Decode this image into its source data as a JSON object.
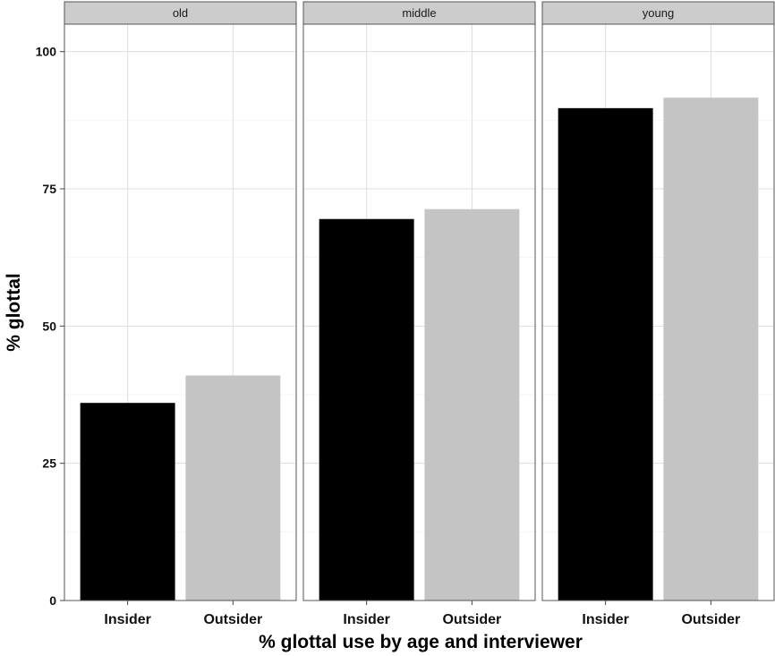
{
  "chart_data": {
    "type": "bar",
    "xlabel": "% glottal use by age and interviewer",
    "ylabel": "% glottal",
    "ylim": [
      0,
      105
    ],
    "yticks": [
      0,
      25,
      50,
      75,
      100
    ],
    "grid": true,
    "categories": [
      "Insider",
      "Outsider"
    ],
    "colors": {
      "Insider": "#000000",
      "Outsider": "#c4c4c4"
    },
    "panels": [
      {
        "name": "old",
        "values": [
          36,
          41
        ]
      },
      {
        "name": "middle",
        "values": [
          69.5,
          71.3
        ]
      },
      {
        "name": "young",
        "values": [
          89.7,
          91.6
        ]
      }
    ]
  }
}
